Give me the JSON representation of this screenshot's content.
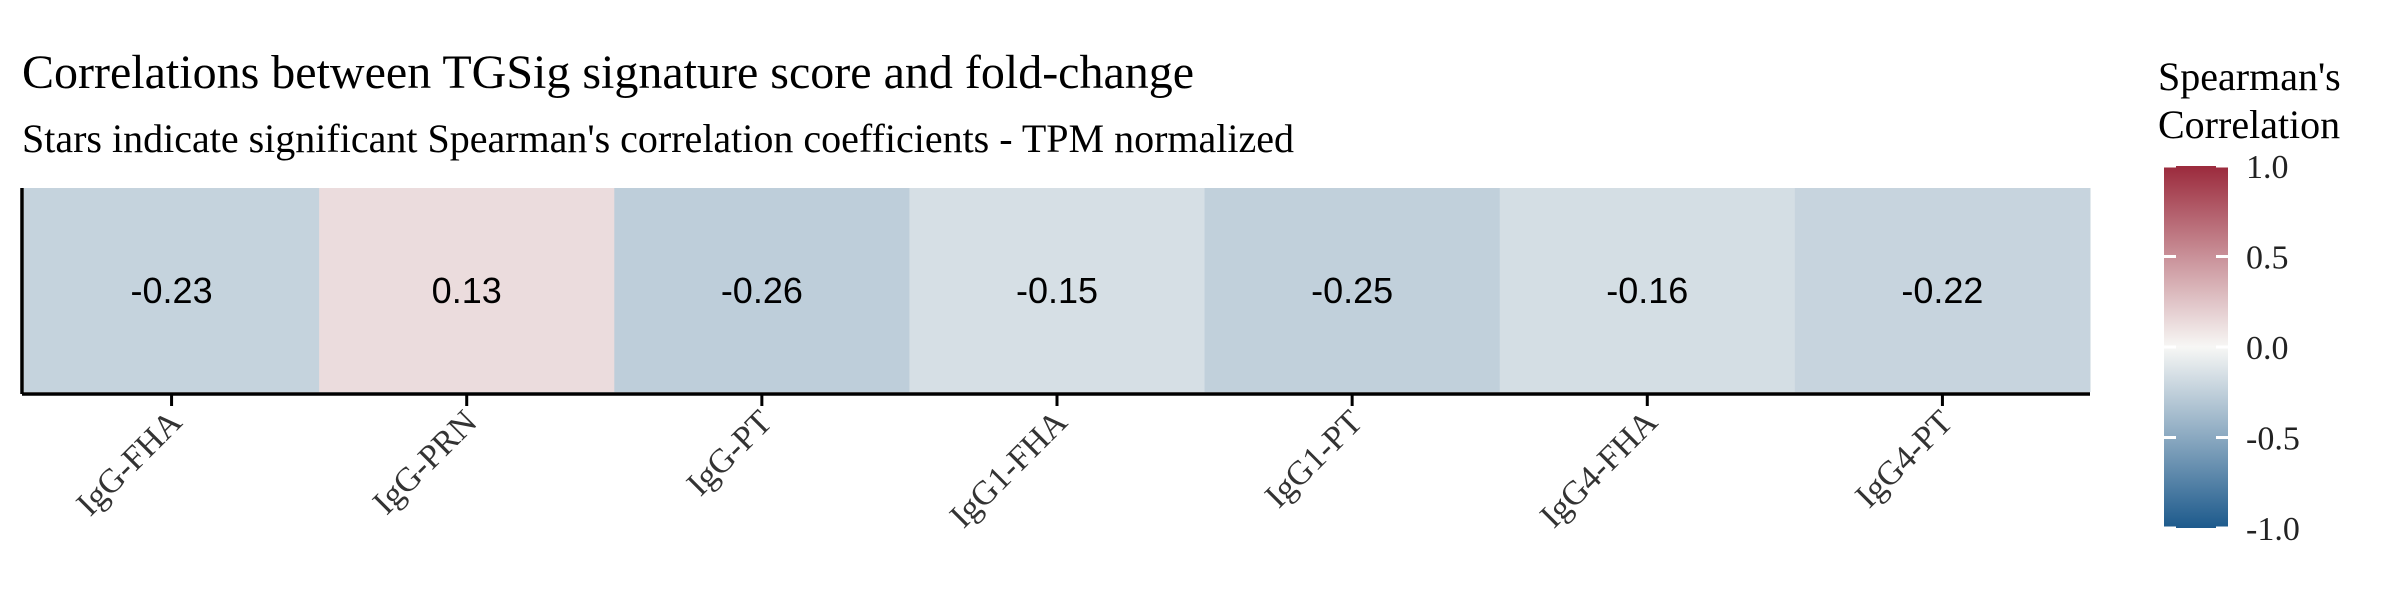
{
  "chart_data": {
    "type": "heatmap",
    "title": "Correlations between TGSig signature score and fold-change",
    "subtitle": "Stars indicate significant Spearman's correlation coefficients - TPM normalized",
    "categories": [
      "IgG-FHA",
      "IgG-PRN",
      "IgG-PT",
      "IgG1-FHA",
      "IgG1-PT",
      "IgG4-FHA",
      "IgG4-PT"
    ],
    "values": [
      -0.23,
      0.13,
      -0.26,
      -0.15,
      -0.25,
      -0.16,
      -0.22
    ],
    "value_labels": [
      "-0.23",
      "0.13",
      "-0.26",
      "-0.15",
      "-0.25",
      "-0.16",
      "-0.22"
    ],
    "xlabel": "",
    "ylabel": "",
    "legend": {
      "title_lines": [
        "Spearman's",
        "Correlation"
      ],
      "placement": "right",
      "range": [
        -1.0,
        1.0
      ],
      "ticks": [
        1.0,
        0.5,
        0.0,
        -0.5,
        -1.0
      ],
      "tick_labels": [
        "1.0",
        "0.5",
        "0.0",
        "-0.5",
        "-1.0"
      ],
      "colors": {
        "low": "#1d5a8c",
        "mid": "#f7f7f5",
        "high": "#9b2a3c"
      }
    },
    "grid": false
  }
}
